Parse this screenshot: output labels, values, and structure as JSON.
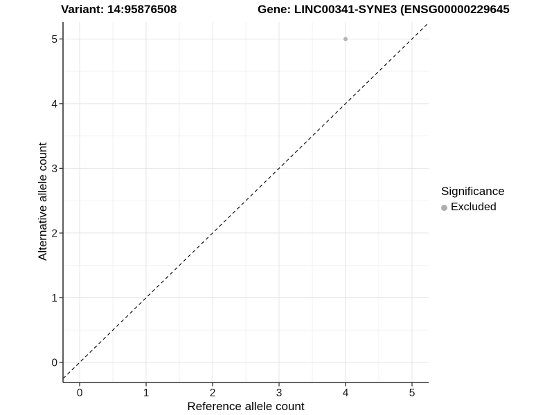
{
  "chart_data": {
    "type": "scatter",
    "titles": {
      "left": "Variant: 14:95876508",
      "right": "Gene: LINC00341-SYNE3 (ENSG00000229645"
    },
    "xlabel": "Reference allele count",
    "ylabel": "Alternative allele count",
    "xlim": [
      -0.25,
      5.25
    ],
    "ylim": [
      -0.31,
      5.26
    ],
    "xticks": [
      0,
      1,
      2,
      3,
      4,
      5
    ],
    "yticks": [
      0,
      1,
      2,
      3,
      4,
      5
    ],
    "minor_grid_step": 0.5,
    "grid": true,
    "legend": {
      "title": "Significance",
      "position": "right",
      "items": [
        {
          "label": "Excluded",
          "color": "#aeaeae"
        }
      ]
    },
    "points": [
      {
        "x": 4,
        "y": 5,
        "series": "Excluded"
      }
    ],
    "identity_line": {
      "style": "dashed",
      "slope": 1,
      "intercept": 0
    },
    "colors": {
      "point": "#b4b4b4",
      "major_grid": "#e4e4e4",
      "minor_grid": "#f1f1f1",
      "axis": "#333333",
      "dashed_line": "#000000",
      "tick_text": "#1a1a1a"
    }
  }
}
